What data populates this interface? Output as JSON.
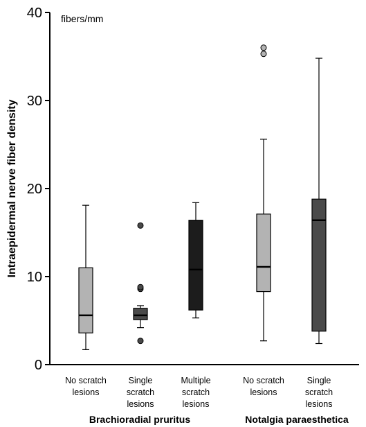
{
  "chart_data": {
    "type": "box",
    "title": "",
    "ylabel": "Intraepidermal nerve fiber density",
    "yunit": "fibers/mm",
    "ylim": [
      0,
      40
    ],
    "yticks": [
      0,
      10,
      20,
      30,
      40
    ],
    "groups": [
      {
        "name": "Brachioradial pruritus",
        "categories": [
          0,
          1,
          2
        ]
      },
      {
        "name": "Notalgia paraesthetica",
        "categories": [
          3,
          4
        ]
      }
    ],
    "categories": [
      {
        "label": [
          "No scratch",
          "lesions"
        ],
        "group": "Brachioradial pruritus",
        "fill": "#b3b3b3",
        "whisker_low": 1.7,
        "q1": 3.6,
        "median": 5.6,
        "q3": 11.0,
        "whisker_high": 18.1,
        "outliers": []
      },
      {
        "label": [
          "Single",
          "scratch",
          "lesions"
        ],
        "group": "Brachioradial pruritus",
        "fill": "#4a4a4a",
        "whisker_low": 4.2,
        "q1": 5.1,
        "median": 5.6,
        "q3": 6.4,
        "whisker_high": 6.7,
        "outliers": [
          2.7,
          8.6,
          8.8,
          15.8
        ]
      },
      {
        "label": [
          "Multiple",
          "scratch",
          "lesions"
        ],
        "group": "Brachioradial pruritus",
        "fill": "#1c1c1c",
        "whisker_low": 5.3,
        "q1": 6.2,
        "median": 10.8,
        "q3": 16.4,
        "whisker_high": 18.4,
        "outliers": []
      },
      {
        "label": [
          "No scratch",
          "lesions"
        ],
        "group": "Notalgia paraesthetica",
        "fill": "#b3b3b3",
        "whisker_low": 2.7,
        "q1": 8.3,
        "median": 11.1,
        "q3": 17.1,
        "whisker_high": 25.6,
        "outliers": [
          35.3,
          36.0
        ]
      },
      {
        "label": [
          "Single",
          "scratch",
          "lesions"
        ],
        "group": "Notalgia paraesthetica",
        "fill": "#4a4a4a",
        "whisker_low": 2.4,
        "q1": 3.8,
        "median": 16.4,
        "q3": 18.8,
        "whisker_high": 34.8,
        "outliers": []
      }
    ]
  }
}
